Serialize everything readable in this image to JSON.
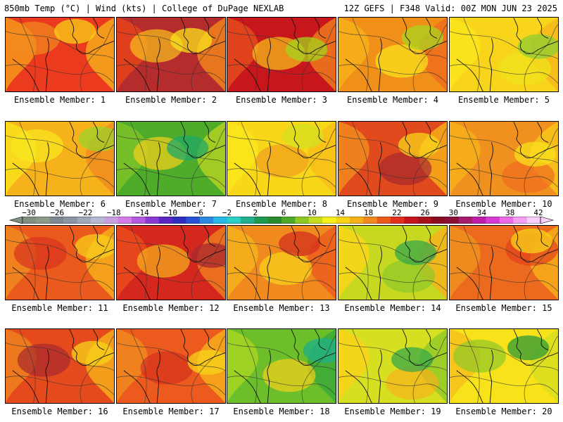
{
  "header": {
    "left": "850mb Temp (°C) | Wind (kts) | College of DuPage NEXLAB",
    "right": "12Z GEFS | F348 Valid: 00Z MON JUN 23 2025"
  },
  "panels": [
    {
      "label": "Ensemble Member: 1",
      "palette": [
        "#ec3a1e",
        "#f6971a",
        "#f6b21a",
        "#f18b1f",
        "#f8d118"
      ]
    },
    {
      "label": "Ensemble Member: 2",
      "palette": [
        "#b52c2c",
        "#e8431c",
        "#f48a1d",
        "#f8c21c",
        "#f9e31c"
      ]
    },
    {
      "label": "Ensemble Member: 3",
      "palette": [
        "#c7171d",
        "#e44a1c",
        "#f0801e",
        "#f8c51b",
        "#a6d31c"
      ]
    },
    {
      "label": "Ensemble Member: 4",
      "palette": [
        "#f09018",
        "#f7b01a",
        "#ef6a1e",
        "#fae61c",
        "#a9d621"
      ]
    },
    {
      "label": "Ensemble Member: 5",
      "palette": [
        "#f8d41a",
        "#fae51b",
        "#f6b81b",
        "#f0e41c",
        "#8fce33"
      ]
    },
    {
      "label": "Ensemble Member: 6",
      "palette": [
        "#f6b21b",
        "#f9df1b",
        "#f08a1e",
        "#f8e81e",
        "#9bd12b"
      ]
    },
    {
      "label": "Ensemble Member: 7",
      "palette": [
        "#4eac2a",
        "#7fc229",
        "#b8d322",
        "#f6d01b",
        "#20a866"
      ]
    },
    {
      "label": "Ensemble Member: 8",
      "palette": [
        "#f8d618",
        "#fae81b",
        "#f7bd1a",
        "#f09e1d",
        "#d6df20"
      ]
    },
    {
      "label": "Ensemble Member: 9",
      "palette": [
        "#e14a1c",
        "#f08a1e",
        "#f7b31a",
        "#a8282e",
        "#f8d41a"
      ]
    },
    {
      "label": "Ensemble Member: 10",
      "palette": [
        "#f0901e",
        "#f7b01a",
        "#f8c81b",
        "#ef6c1e",
        "#fae11c"
      ]
    },
    {
      "label": "Ensemble Member: 11",
      "palette": [
        "#ea5a1d",
        "#f08a1e",
        "#f6b21b",
        "#d9321e",
        "#f8cd1a"
      ]
    },
    {
      "label": "Ensemble Member: 12",
      "palette": [
        "#d4281e",
        "#ea4a1c",
        "#f0801e",
        "#f7b21b",
        "#a9272f"
      ]
    },
    {
      "label": "Ensemble Member: 13",
      "palette": [
        "#f08a1e",
        "#f6b21b",
        "#ec5a1d",
        "#f8d41a",
        "#d3301e"
      ]
    },
    {
      "label": "Ensemble Member: 14",
      "palette": [
        "#c6d820",
        "#f8d61a",
        "#f6b21b",
        "#8fc829",
        "#36a848"
      ]
    },
    {
      "label": "Ensemble Member: 15",
      "palette": [
        "#ec6a1d",
        "#f0901e",
        "#f6b21b",
        "#e2421c",
        "#f8d41a"
      ]
    },
    {
      "label": "Ensemble Member: 16",
      "palette": [
        "#e44a1c",
        "#f0801e",
        "#f6b21b",
        "#a8282e",
        "#f8d41a"
      ]
    },
    {
      "label": "Ensemble Member: 17",
      "palette": [
        "#ec5a1d",
        "#f08a1e",
        "#f6b21b",
        "#d4301e",
        "#f8d41a"
      ]
    },
    {
      "label": "Ensemble Member: 18",
      "palette": [
        "#6cbf2a",
        "#a6d322",
        "#3aa83a",
        "#f6d01b",
        "#1fb08a"
      ]
    },
    {
      "label": "Ensemble Member: 19",
      "palette": [
        "#d6df20",
        "#f8d41a",
        "#8fc829",
        "#f6b21b",
        "#3aa848"
      ]
    },
    {
      "label": "Ensemble Member: 20",
      "palette": [
        "#f8e21a",
        "#f6c21b",
        "#d6df20",
        "#8fc829",
        "#2e9a3a"
      ]
    }
  ],
  "colorbar": {
    "labels": [
      "−30",
      "−26",
      "−22",
      "−18",
      "−14",
      "−10",
      "−6",
      "−2",
      "2",
      "6",
      "10",
      "14",
      "18",
      "22",
      "26",
      "30",
      "34",
      "38",
      "42"
    ],
    "colors": [
      "#7f8f80",
      "#8c9a8c",
      "#7b8a92",
      "#8d94a2",
      "#a0a8b8",
      "#b6b8d4",
      "#c8a0e0",
      "#d47ce8",
      "#b45adc",
      "#8a3ad0",
      "#5a26c6",
      "#2e2ebe",
      "#2a52d6",
      "#2a8ae0",
      "#28b8e6",
      "#2ad0c8",
      "#20b08c",
      "#1e9a50",
      "#2a8a2e",
      "#4ea82a",
      "#8ec822",
      "#c6dc1e",
      "#f6f018",
      "#f8d418",
      "#f6b018",
      "#f08a1c",
      "#ec5a1c",
      "#e2301c",
      "#c8141c",
      "#a8101c",
      "#8c0c20",
      "#8a1038",
      "#a81c6e",
      "#c01ca8",
      "#d83ad6",
      "#ec6ae8",
      "#f4a0f2",
      "#f8cefa"
    ]
  }
}
